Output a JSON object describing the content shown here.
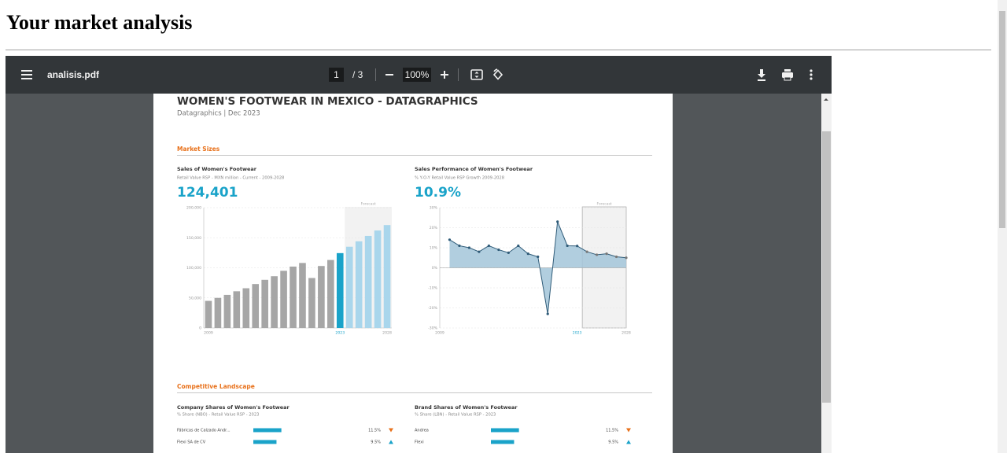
{
  "header": {
    "title": "Your market analysis"
  },
  "viewer": {
    "file_name": "analisis.pdf",
    "page": "1",
    "page_of": "/ 3",
    "zoom": "100%"
  },
  "document": {
    "title": "WOMEN'S FOOTWEAR IN MEXICO - DATAGRAPHICS",
    "subtitle": "Datagraphics | Dec 2023",
    "market_sizes": {
      "heading": "Market Sizes",
      "charts": [
        {
          "type": "bar",
          "title": "Sales of Women's Footwear",
          "subtitle": "Retail Value RSP - MXN million - Current - 2009-2028",
          "headline": "124,401",
          "forecast_label": "Forecast",
          "categories": [
            "2009",
            null,
            null,
            null,
            null,
            null,
            null,
            null,
            null,
            null,
            null,
            null,
            null,
            null,
            "2023",
            null,
            null,
            null,
            null,
            "2028"
          ],
          "values": [
            45000,
            50000,
            55000,
            61000,
            66000,
            73000,
            80000,
            86000,
            95000,
            102000,
            108000,
            83000,
            103000,
            113000,
            124401,
            135000,
            144000,
            153000,
            162000,
            171000
          ],
          "colors": [
            "#a6a6a6",
            "#a6a6a6",
            "#a6a6a6",
            "#a6a6a6",
            "#a6a6a6",
            "#a6a6a6",
            "#a6a6a6",
            "#a6a6a6",
            "#a6a6a6",
            "#a6a6a6",
            "#a6a6a6",
            "#a6a6a6",
            "#a6a6a6",
            "#a6a6a6",
            "#1aa3c9",
            "#a9d6ec",
            "#a9d6ec",
            "#a9d6ec",
            "#a9d6ec",
            "#a9d6ec"
          ],
          "forecast_color": "#a9d6ec",
          "ylim": [
            0,
            200000
          ],
          "yticks": [
            0,
            {
              "value": 50000,
              "label": "50,000"
            },
            {
              "value": 100000,
              "label": "100,000"
            },
            {
              "value": 150000,
              "label": "150,000"
            },
            {
              "value": 200000,
              "label": "200,000"
            }
          ],
          "grid": true
        },
        {
          "type": "line",
          "title": "Sales Performance of Women's Footwear",
          "subtitle": "% Y-O-Y Retail Value RSP Growth 2009-2028",
          "headline": "10.9%",
          "forecast_label": "Forecast",
          "forecast_range": [
            2024,
            2028
          ],
          "x": [
            2010,
            2011,
            2012,
            2013,
            2014,
            2015,
            2016,
            2017,
            2018,
            2019,
            2020,
            2021,
            2022,
            2023,
            2024,
            2025,
            2026,
            2027,
            2028
          ],
          "values": [
            14,
            11,
            10,
            8,
            11,
            9,
            7.5,
            11,
            7,
            5.5,
            -23,
            23,
            11,
            10.9,
            8,
            6.5,
            7,
            5.5,
            5
          ],
          "color": "#2f5b78",
          "fill": "#a3c6d9",
          "xlim": [
            2009,
            2028
          ],
          "xticks": [
            2009,
            2023,
            2028
          ],
          "ylim": [
            -30,
            30
          ],
          "yticks": [
            {
              "value": -30,
              "label": "-30%"
            },
            {
              "value": -20,
              "label": "-20%"
            },
            {
              "value": -10,
              "label": "-10%"
            },
            {
              "value": 0,
              "label": "0%"
            },
            {
              "value": 10,
              "label": "10%"
            },
            {
              "value": 20,
              "label": "20%"
            },
            {
              "value": 30,
              "label": "30%"
            }
          ],
          "grid": true
        }
      ]
    },
    "competitive": {
      "heading": "Competitive Landscape",
      "tables": [
        {
          "title": "Company Shares of Women's Footwear",
          "subtitle": "% Share (NBO) - Retail Value RSP - 2023",
          "rows": [
            {
              "name": "Fábricas de Calzado Andr...",
              "value": 11.5,
              "value_label": "11.5%",
              "trend": "down"
            },
            {
              "name": "Flexi SA de CV",
              "value": 9.5,
              "value_label": "9.5%",
              "trend": "up"
            }
          ]
        },
        {
          "title": "Brand Shares of Women's Footwear",
          "subtitle": "% Share (LBN) - Retail Value RSP - 2023",
          "rows": [
            {
              "name": "Andrea",
              "value": 11.5,
              "value_label": "11.5%",
              "trend": "down"
            },
            {
              "name": "Flexi",
              "value": 9.5,
              "value_label": "9.5%",
              "trend": "up"
            }
          ]
        }
      ]
    }
  }
}
